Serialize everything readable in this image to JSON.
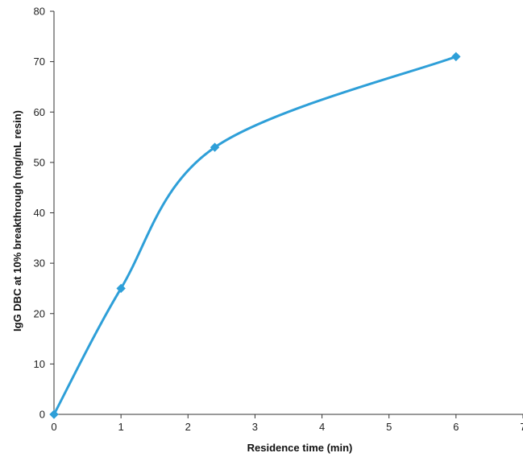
{
  "chart_data": {
    "type": "line",
    "title": "",
    "xlabel": "Residence time (min)",
    "ylabel": "IgG DBC at 10% breakthrough (mg/mL resin)",
    "xlim": [
      0,
      7
    ],
    "ylim": [
      0,
      80
    ],
    "x_ticks": [
      0,
      1,
      2,
      3,
      4,
      5,
      6,
      7
    ],
    "y_ticks": [
      0,
      10,
      20,
      30,
      40,
      50,
      60,
      70,
      80
    ],
    "grid": false,
    "legend": "none",
    "smooth": true,
    "marker": "diamond",
    "series": [
      {
        "color": "#2e9fd8",
        "points": [
          {
            "x": 0,
            "y": 0
          },
          {
            "x": 1,
            "y": 25
          },
          {
            "x": 2.4,
            "y": 53
          },
          {
            "x": 6,
            "y": 71
          }
        ]
      }
    ]
  }
}
